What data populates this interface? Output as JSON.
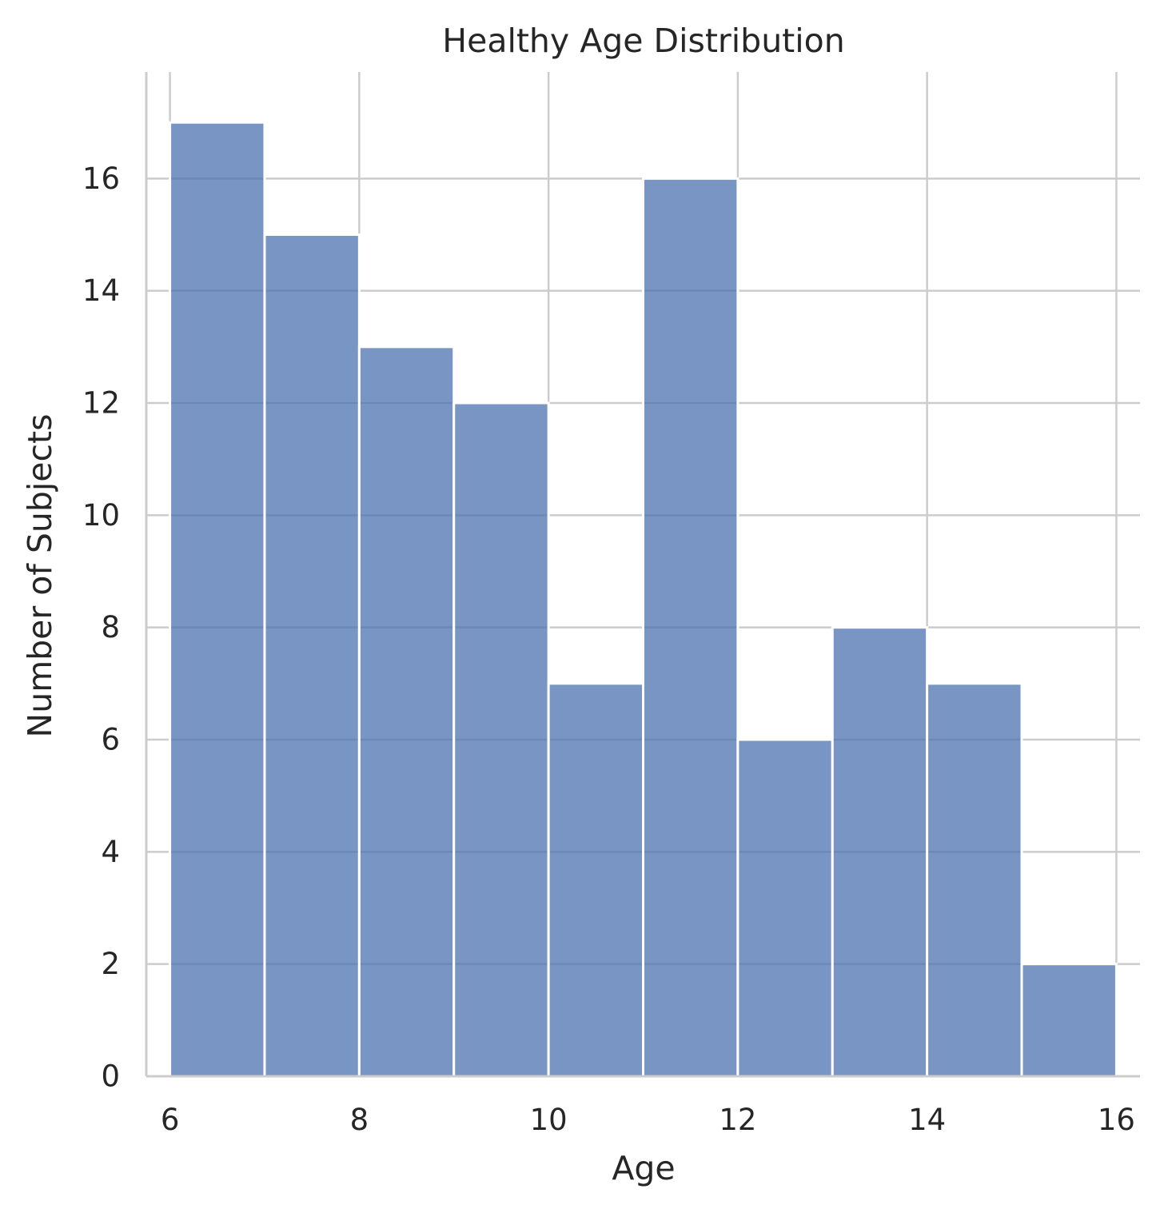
{
  "chart_data": {
    "type": "bar",
    "title": "Healthy Age Distribution",
    "xlabel": "Age",
    "ylabel": "Number of Subjects",
    "bin_edges": [
      6,
      7,
      8,
      9,
      10,
      11,
      12,
      13,
      14,
      15,
      16
    ],
    "values": [
      17,
      15,
      13,
      12,
      7,
      16,
      6,
      8,
      7,
      2
    ],
    "xlim": [
      5.75,
      16.25
    ],
    "ylim": [
      0,
      17.9
    ],
    "x_ticks": [
      6,
      8,
      10,
      12,
      14,
      16
    ],
    "y_ticks": [
      0,
      2,
      4,
      6,
      8,
      10,
      12,
      14,
      16
    ],
    "grid": true,
    "bar_color": "#4c72b0",
    "bar_alpha": 0.75
  }
}
